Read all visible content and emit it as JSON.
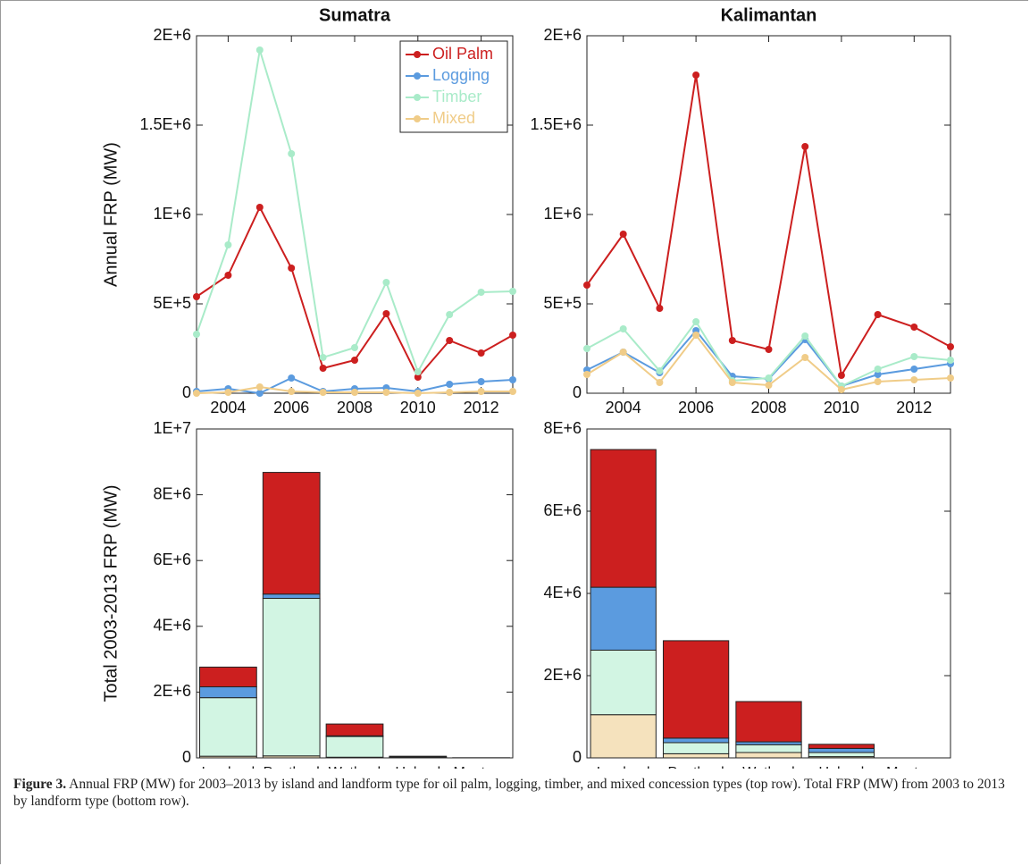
{
  "chart_data": [
    {
      "type": "line",
      "title": "Sumatra",
      "ylabel": "Annual FRP (MW)",
      "x": [
        2003,
        2004,
        2005,
        2006,
        2007,
        2008,
        2009,
        2010,
        2011,
        2012,
        2013
      ],
      "xlim": [
        2003,
        2013
      ],
      "xticks": [
        2004,
        2006,
        2008,
        2010,
        2012
      ],
      "ylim": [
        0,
        2000000
      ],
      "yticks": [
        0,
        {
          "value": 500000,
          "label": "5E+5"
        },
        {
          "value": 1000000,
          "label": "1E+6"
        },
        {
          "value": 1500000,
          "label": "1.5E+6"
        },
        {
          "value": 2000000,
          "label": "2E+6"
        }
      ],
      "legend": "upper right",
      "series": [
        {
          "name": "Oil Palm",
          "color": "#cc1f1f",
          "values": [
            540000,
            660000,
            1040000,
            700000,
            140000,
            185000,
            445000,
            90000,
            295000,
            225000,
            325000
          ]
        },
        {
          "name": "Logging",
          "color": "#5b9bdf",
          "values": [
            10000,
            25000,
            0,
            85000,
            10000,
            25000,
            30000,
            10000,
            50000,
            65000,
            75000
          ]
        },
        {
          "name": "Timber",
          "color": "#a9ebc9",
          "values": [
            330000,
            830000,
            1920000,
            1340000,
            200000,
            255000,
            620000,
            120000,
            440000,
            565000,
            570000
          ]
        },
        {
          "name": "Mixed",
          "color": "#f0cc88",
          "values": [
            0,
            5000,
            35000,
            10000,
            5000,
            5000,
            5000,
            0,
            5000,
            10000,
            10000
          ]
        }
      ]
    },
    {
      "type": "line",
      "title": "Kalimantan",
      "x": [
        2003,
        2004,
        2005,
        2006,
        2007,
        2008,
        2009,
        2010,
        2011,
        2012,
        2013
      ],
      "xlim": [
        2003,
        2013
      ],
      "xticks": [
        2004,
        2006,
        2008,
        2010,
        2012
      ],
      "ylim": [
        0,
        2000000
      ],
      "yticks": [
        0,
        {
          "value": 500000,
          "label": "5E+5"
        },
        {
          "value": 1000000,
          "label": "1E+6"
        },
        {
          "value": 1500000,
          "label": "1.5E+6"
        },
        {
          "value": 2000000,
          "label": "2E+6"
        }
      ],
      "series": [
        {
          "color": "#cc1f1f",
          "values": [
            605000,
            890000,
            475000,
            1780000,
            295000,
            245000,
            1380000,
            100000,
            440000,
            370000,
            260000
          ]
        },
        {
          "color": "#5b9bdf",
          "values": [
            130000,
            230000,
            115000,
            350000,
            95000,
            80000,
            300000,
            40000,
            105000,
            135000,
            165000
          ]
        },
        {
          "color": "#a9ebc9",
          "values": [
            250000,
            360000,
            125000,
            400000,
            70000,
            85000,
            320000,
            40000,
            135000,
            205000,
            185000
          ]
        },
        {
          "color": "#f0cc88",
          "values": [
            105000,
            230000,
            60000,
            325000,
            60000,
            45000,
            200000,
            20000,
            65000,
            75000,
            85000
          ]
        }
      ]
    },
    {
      "type": "stacked-bar",
      "ylabel": "Total 2003-2013 FRP (MW)",
      "categories": [
        "Lowland",
        "Peatland",
        "Wetland",
        "Upland",
        "Montane"
      ],
      "ylim": [
        0,
        10000000
      ],
      "yticks": [
        0,
        {
          "value": 2000000,
          "label": "2E+6"
        },
        {
          "value": 4000000,
          "label": "4E+6"
        },
        {
          "value": 6000000,
          "label": "6E+6"
        },
        {
          "value": 8000000,
          "label": "8E+6"
        },
        {
          "value": 10000000,
          "label": "1E+7"
        }
      ],
      "series": [
        {
          "color": "#f5e2bd",
          "values": [
            50000,
            60000,
            20000,
            0,
            0
          ]
        },
        {
          "color": "#d2f5e3",
          "values": [
            1780000,
            4790000,
            630000,
            20000,
            0
          ]
        },
        {
          "color": "#5b9bdf",
          "values": [
            330000,
            130000,
            20000,
            10000,
            0
          ]
        },
        {
          "color": "#cc1f1f",
          "values": [
            600000,
            3700000,
            360000,
            20000,
            5000
          ]
        }
      ]
    },
    {
      "type": "stacked-bar",
      "categories": [
        "Lowland",
        "Peatland",
        "Wetland",
        "Upland",
        "Montane"
      ],
      "ylim": [
        0,
        8000000
      ],
      "yticks": [
        0,
        {
          "value": 2000000,
          "label": "2E+6"
        },
        {
          "value": 4000000,
          "label": "4E+6"
        },
        {
          "value": 6000000,
          "label": "6E+6"
        },
        {
          "value": 8000000,
          "label": "8E+6"
        }
      ],
      "series": [
        {
          "color": "#f5e2bd",
          "values": [
            1050000,
            100000,
            130000,
            30000,
            0
          ]
        },
        {
          "color": "#d2f5e3",
          "values": [
            1570000,
            270000,
            190000,
            100000,
            0
          ]
        },
        {
          "color": "#5b9bdf",
          "values": [
            1530000,
            110000,
            70000,
            100000,
            0
          ]
        },
        {
          "color": "#cc1f1f",
          "values": [
            3350000,
            2370000,
            980000,
            100000,
            0
          ]
        }
      ]
    }
  ],
  "caption": {
    "label": "Figure 3.",
    "text": " Annual FRP (MW) for 2003–2013 by island and landform type for oil palm, logging, timber, and mixed concession types (top row). Total FRP (MW) from 2003 to 2013 by landform type (bottom row)."
  }
}
